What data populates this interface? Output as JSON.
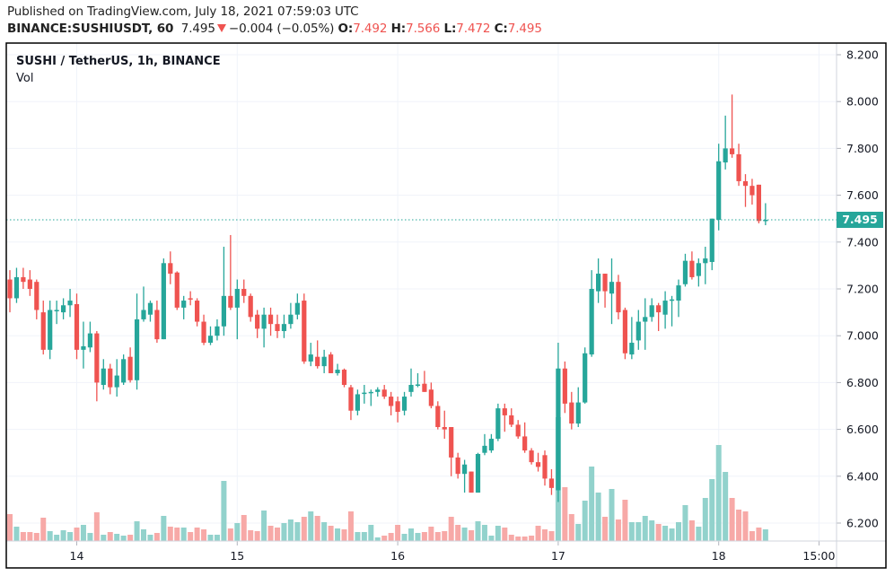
{
  "header": {
    "published": "Published on TradingView.com, July 18, 2021 07:59:03 UTC",
    "symbol": "BINANCE:SUSHIUSDT, 60",
    "last": "7.495",
    "change": "−0.004 (−0.05%)",
    "o_label": "O:",
    "o": "7.492",
    "h_label": "H:",
    "h": "7.566",
    "l_label": "L:",
    "l": "7.472",
    "c_label": "C:",
    "c": "7.495",
    "direction_icon": "triangle-down-icon"
  },
  "legend": {
    "title": "SUSHI / TetherUS, 1h, BINANCE",
    "vol": "Vol"
  },
  "last_price_label": "7.495",
  "colors": {
    "up": "#26a69a",
    "down": "#ef5350",
    "up_vol": "#92d2cc",
    "down_vol": "#f7a9a7",
    "grid": "#f0f3fa"
  },
  "chart_data": {
    "type": "candlestick",
    "title": "SUSHI / TetherUS, 1h, BINANCE",
    "ylim": [
      6.2,
      8.2
    ],
    "y_ticks": [
      "8.200",
      "8.000",
      "7.800",
      "7.600",
      "7.400",
      "7.200",
      "7.000",
      "6.800",
      "6.600",
      "6.400",
      "6.200"
    ],
    "x_ticks": [
      {
        "label": "14",
        "index": 10
      },
      {
        "label": "15",
        "index": 34
      },
      {
        "label": "16",
        "index": 58
      },
      {
        "label": "17",
        "index": 82
      },
      {
        "label": "18",
        "index": 106
      },
      {
        "label": "15:00",
        "index": 121
      }
    ],
    "last_price": 7.495,
    "ohlc": [
      [
        7.24,
        7.28,
        7.1,
        7.16
      ],
      [
        7.16,
        7.29,
        7.14,
        7.25
      ],
      [
        7.25,
        7.29,
        7.2,
        7.23
      ],
      [
        7.24,
        7.28,
        7.17,
        7.2
      ],
      [
        7.23,
        7.24,
        7.07,
        7.11
      ],
      [
        7.1,
        7.15,
        6.92,
        6.94
      ],
      [
        6.94,
        7.15,
        6.9,
        7.11
      ],
      [
        7.11,
        7.15,
        7.05,
        7.11
      ],
      [
        7.1,
        7.16,
        7.07,
        7.13
      ],
      [
        7.13,
        7.2,
        7.08,
        7.15
      ],
      [
        7.135,
        7.18,
        6.9,
        6.94
      ],
      [
        6.94,
        7.06,
        6.86,
        6.955
      ],
      [
        6.95,
        7.06,
        6.93,
        7.01
      ],
      [
        7.01,
        7.02,
        6.72,
        6.8
      ],
      [
        6.79,
        6.9,
        6.77,
        6.86
      ],
      [
        6.86,
        6.88,
        6.75,
        6.78
      ],
      [
        6.78,
        6.9,
        6.74,
        6.83
      ],
      [
        6.8,
        6.92,
        6.79,
        6.9
      ],
      [
        6.91,
        6.95,
        6.8,
        6.81
      ],
      [
        6.81,
        7.18,
        6.77,
        7.07
      ],
      [
        7.07,
        7.21,
        7.06,
        7.11
      ],
      [
        7.09,
        7.15,
        7.06,
        7.14
      ],
      [
        7.11,
        7.15,
        6.97,
        6.985
      ],
      [
        6.985,
        7.33,
        6.985,
        7.31
      ],
      [
        7.31,
        7.36,
        7.22,
        7.265
      ],
      [
        7.27,
        7.275,
        7.11,
        7.12
      ],
      [
        7.12,
        7.17,
        7.07,
        7.15
      ],
      [
        7.16,
        7.19,
        7.13,
        7.155
      ],
      [
        7.15,
        7.16,
        7.04,
        7.06
      ],
      [
        7.06,
        7.09,
        6.96,
        6.97
      ],
      [
        6.97,
        7.04,
        6.96,
        7.0
      ],
      [
        7.0,
        7.07,
        6.98,
        7.04
      ],
      [
        7.04,
        7.38,
        7.0,
        7.17
      ],
      [
        7.17,
        7.43,
        7.11,
        7.12
      ],
      [
        7.12,
        7.24,
        6.985,
        7.2
      ],
      [
        7.2,
        7.24,
        7.14,
        7.17
      ],
      [
        7.17,
        7.18,
        7.06,
        7.08
      ],
      [
        7.09,
        7.11,
        6.99,
        7.03
      ],
      [
        7.03,
        7.12,
        6.95,
        7.09
      ],
      [
        7.09,
        7.12,
        7.0,
        7.05
      ],
      [
        7.05,
        7.09,
        6.99,
        7.02
      ],
      [
        7.02,
        7.09,
        6.99,
        7.05
      ],
      [
        7.05,
        7.14,
        7.03,
        7.09
      ],
      [
        7.09,
        7.18,
        7.07,
        7.14
      ],
      [
        7.15,
        7.18,
        6.88,
        6.89
      ],
      [
        6.89,
        6.97,
        6.87,
        6.92
      ],
      [
        6.91,
        6.98,
        6.86,
        6.87
      ],
      [
        6.87,
        6.94,
        6.84,
        6.91
      ],
      [
        6.92,
        6.93,
        6.84,
        6.84
      ],
      [
        6.84,
        6.88,
        6.83,
        6.855
      ],
      [
        6.855,
        6.86,
        6.78,
        6.79
      ],
      [
        6.78,
        6.79,
        6.64,
        6.68
      ],
      [
        6.68,
        6.77,
        6.66,
        6.75
      ],
      [
        6.755,
        6.79,
        6.71,
        6.757
      ],
      [
        6.755,
        6.77,
        6.7,
        6.76
      ],
      [
        6.76,
        6.78,
        6.74,
        6.77
      ],
      [
        6.77,
        6.79,
        6.73,
        6.74
      ],
      [
        6.74,
        6.76,
        6.66,
        6.7
      ],
      [
        6.72,
        6.74,
        6.63,
        6.675
      ],
      [
        6.68,
        6.76,
        6.66,
        6.74
      ],
      [
        6.76,
        6.86,
        6.74,
        6.79
      ],
      [
        6.79,
        6.84,
        6.78,
        6.792
      ],
      [
        6.795,
        6.85,
        6.76,
        6.76
      ],
      [
        6.77,
        6.8,
        6.69,
        6.7
      ],
      [
        6.7,
        6.72,
        6.6,
        6.61
      ],
      [
        6.61,
        6.68,
        6.56,
        6.6
      ],
      [
        6.61,
        6.61,
        6.4,
        6.48
      ],
      [
        6.48,
        6.5,
        6.39,
        6.41
      ],
      [
        6.41,
        6.47,
        6.33,
        6.45
      ],
      [
        6.42,
        6.42,
        6.33,
        6.33
      ],
      [
        6.33,
        6.5,
        6.33,
        6.495
      ],
      [
        6.5,
        6.58,
        6.49,
        6.53
      ],
      [
        6.51,
        6.58,
        6.5,
        6.56
      ],
      [
        6.56,
        6.71,
        6.55,
        6.69
      ],
      [
        6.69,
        6.71,
        6.59,
        6.66
      ],
      [
        6.66,
        6.69,
        6.61,
        6.62
      ],
      [
        6.62,
        6.64,
        6.56,
        6.57
      ],
      [
        6.57,
        6.63,
        6.5,
        6.51
      ],
      [
        6.51,
        6.52,
        6.45,
        6.46
      ],
      [
        6.46,
        6.5,
        6.42,
        6.44
      ],
      [
        6.49,
        6.51,
        6.36,
        6.39
      ],
      [
        6.39,
        6.43,
        6.32,
        6.35
      ],
      [
        6.34,
        6.97,
        6.29,
        6.86
      ],
      [
        6.86,
        6.89,
        6.67,
        6.71
      ],
      [
        6.715,
        6.76,
        6.6,
        6.625
      ],
      [
        6.625,
        6.78,
        6.61,
        6.715
      ],
      [
        6.715,
        6.95,
        6.71,
        6.925
      ],
      [
        6.92,
        7.28,
        6.91,
        7.2
      ],
      [
        7.19,
        7.33,
        7.14,
        7.265
      ],
      [
        7.265,
        7.265,
        7.12,
        7.19
      ],
      [
        7.18,
        7.33,
        7.05,
        7.23
      ],
      [
        7.23,
        7.26,
        7.07,
        7.1
      ],
      [
        7.11,
        7.12,
        6.9,
        6.925
      ],
      [
        6.92,
        7.08,
        6.9,
        6.97
      ],
      [
        6.98,
        7.11,
        6.94,
        7.06
      ],
      [
        7.06,
        7.16,
        6.94,
        7.08
      ],
      [
        7.08,
        7.16,
        7.06,
        7.13
      ],
      [
        7.13,
        7.14,
        7.02,
        7.1
      ],
      [
        7.09,
        7.19,
        7.03,
        7.15
      ],
      [
        7.15,
        7.17,
        7.04,
        7.155
      ],
      [
        7.15,
        7.24,
        7.08,
        7.215
      ],
      [
        7.22,
        7.35,
        7.21,
        7.32
      ],
      [
        7.32,
        7.36,
        7.24,
        7.25
      ],
      [
        7.255,
        7.33,
        7.21,
        7.31
      ],
      [
        7.31,
        7.38,
        7.22,
        7.33
      ],
      [
        7.315,
        7.5,
        7.28,
        7.5
      ],
      [
        7.495,
        7.82,
        7.45,
        7.745
      ],
      [
        7.74,
        7.94,
        7.71,
        7.8
      ],
      [
        7.8,
        8.03,
        7.76,
        7.775
      ],
      [
        7.775,
        7.82,
        7.64,
        7.66
      ],
      [
        7.66,
        7.69,
        7.55,
        7.64
      ],
      [
        7.64,
        7.67,
        7.56,
        7.6
      ],
      [
        7.645,
        7.645,
        7.48,
        7.49
      ],
      [
        7.492,
        7.566,
        7.472,
        7.495
      ]
    ],
    "volume_relative": [
      30,
      16,
      10,
      10,
      9,
      26,
      11,
      7,
      12,
      10,
      15,
      18,
      9,
      32,
      7,
      10,
      8,
      6,
      7,
      22,
      13,
      7,
      9,
      28,
      16,
      15,
      15,
      10,
      15,
      13,
      7,
      7,
      67,
      14,
      20,
      29,
      12,
      11,
      34,
      17,
      15,
      20,
      24,
      21,
      27,
      33,
      28,
      21,
      17,
      14,
      13,
      33,
      10,
      10,
      18,
      4,
      6,
      9,
      18,
      8,
      14,
      9,
      10,
      16,
      10,
      11,
      27,
      18,
      15,
      12,
      22,
      18,
      6,
      17,
      15,
      7,
      5,
      5,
      6,
      17,
      13,
      11,
      138,
      60,
      30,
      19,
      45,
      83,
      54,
      27,
      58,
      24,
      46,
      21,
      21,
      28,
      23,
      19,
      17,
      14,
      21,
      40,
      23,
      16,
      48,
      69,
      107,
      77,
      48,
      35,
      33,
      11,
      15,
      13
    ]
  }
}
